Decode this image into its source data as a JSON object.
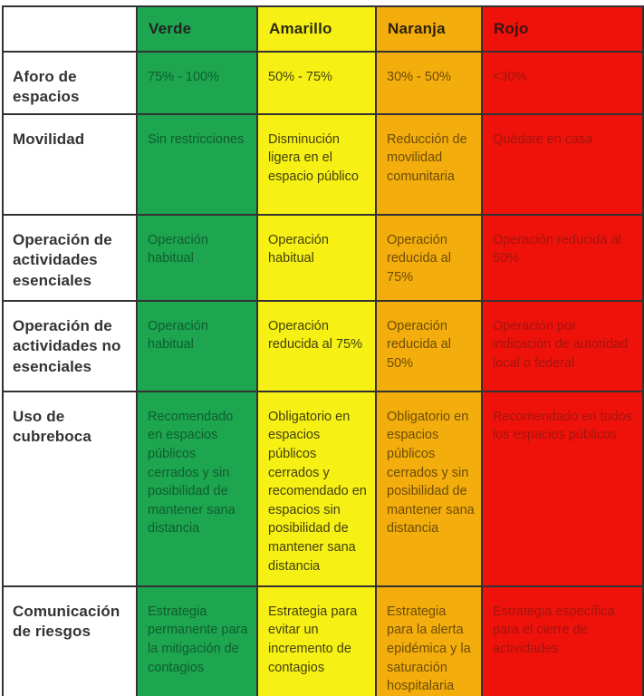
{
  "table": {
    "columns": [
      {
        "key": "verde",
        "label": "Verde",
        "bg": "#1ea550",
        "header_text_color": "#222422",
        "cell_text_color": "#0f5e2f"
      },
      {
        "key": "amarillo",
        "label": "Amarillo",
        "bg": "#f7f014",
        "header_text_color": "#2b2a10",
        "cell_text_color": "#43420d"
      },
      {
        "key": "naranja",
        "label": "Naranja",
        "bg": "#f3ad0c",
        "header_text_color": "#2e2108",
        "cell_text_color": "#6e4d06"
      },
      {
        "key": "rojo",
        "label": "Rojo",
        "bg": "#ee120a",
        "header_text_color": "#3a1410",
        "cell_text_color": "#a41410"
      }
    ],
    "rows": [
      {
        "label": "Aforo de espacios",
        "cells": [
          "75% - 100%",
          "50% - 75%",
          "30% - 50%",
          "<30%"
        ]
      },
      {
        "label": "Movilidad",
        "cells": [
          "Sin restricciones",
          "Disminución ligera en el espacio público",
          "Reducción de movilidad comunitaria",
          "Quédate en casa"
        ]
      },
      {
        "label": "Operación de actividades esenciales",
        "cells": [
          "Operación habitual",
          "Operación habitual",
          "Operación reducida al 75%",
          "Operación reducida al 50%"
        ]
      },
      {
        "label": "Operación de actividades no esenciales",
        "cells": [
          "Operación habitual",
          "Operación reducida al 75%",
          "Operación reducida al 50%",
          "Operación por indicación de autoridad local o federal"
        ]
      },
      {
        "label": "Uso de cubreboca",
        "cells": [
          "Recomendado en espacios públicos cerrados y sin posibilidad de mantener sana distancia",
          "Obligatorio en espacios públicos cerrados y recomendado en espacios sin posibilidad de mantener sana distancia",
          "Obligatorio en espacios públicos cerrados y sin posibilidad de mantener sana distancia",
          "Recomendado en todos los espacios públicos"
        ]
      },
      {
        "label": "Comunicación de riesgos",
        "cells": [
          "Estrategia permanente para la mitigación de contagios",
          "Estrategia para evitar un incremento de contagios",
          "Estrategia para la alerta epidémica y la saturación hospitalaria",
          "Estrategia específica para el cierre de actividades"
        ]
      }
    ]
  }
}
